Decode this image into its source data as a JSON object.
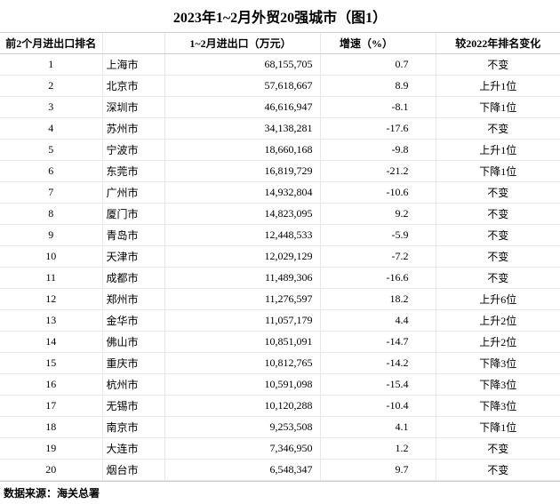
{
  "title": "2023年1~2月外贸20强城市（图1）",
  "columns": {
    "rank": "前2个月进出口排名",
    "city": "",
    "value": "1~2月进出口（万元）",
    "growth": "增速（%）",
    "change": "较2022年排名变化"
  },
  "rows": [
    {
      "rank": "1",
      "city": "上海市",
      "value": "68,155,705",
      "growth": "0.7",
      "change": "不变"
    },
    {
      "rank": "2",
      "city": "北京市",
      "value": "57,618,667",
      "growth": "8.9",
      "change": "上升1位"
    },
    {
      "rank": "3",
      "city": "深圳市",
      "value": "46,616,947",
      "growth": "-8.1",
      "change": "下降1位"
    },
    {
      "rank": "4",
      "city": "苏州市",
      "value": "34,138,281",
      "growth": "-17.6",
      "change": "不变"
    },
    {
      "rank": "5",
      "city": "宁波市",
      "value": "18,660,168",
      "growth": "-9.8",
      "change": "上升1位"
    },
    {
      "rank": "6",
      "city": "东莞市",
      "value": "16,819,729",
      "growth": "-21.2",
      "change": "下降1位"
    },
    {
      "rank": "7",
      "city": "广州市",
      "value": "14,932,804",
      "growth": "-10.6",
      "change": "不变"
    },
    {
      "rank": "8",
      "city": "厦门市",
      "value": "14,823,095",
      "growth": "9.2",
      "change": "不变"
    },
    {
      "rank": "9",
      "city": "青岛市",
      "value": "12,448,533",
      "growth": "-5.9",
      "change": "不变"
    },
    {
      "rank": "10",
      "city": "天津市",
      "value": "12,029,129",
      "growth": "-7.2",
      "change": "不变"
    },
    {
      "rank": "11",
      "city": "成都市",
      "value": "11,489,306",
      "growth": "-16.6",
      "change": "不变"
    },
    {
      "rank": "12",
      "city": "郑州市",
      "value": "11,276,597",
      "growth": "18.2",
      "change": "上升6位"
    },
    {
      "rank": "13",
      "city": "金华市",
      "value": "11,057,179",
      "growth": "4.4",
      "change": "上升2位"
    },
    {
      "rank": "14",
      "city": "佛山市",
      "value": "10,851,091",
      "growth": "-14.7",
      "change": "上升2位"
    },
    {
      "rank": "15",
      "city": "重庆市",
      "value": "10,812,765",
      "growth": "-14.2",
      "change": "下降3位"
    },
    {
      "rank": "16",
      "city": "杭州市",
      "value": "10,591,098",
      "growth": "-15.4",
      "change": "下降3位"
    },
    {
      "rank": "17",
      "city": "无锡市",
      "value": "10,120,288",
      "growth": "-10.4",
      "change": "下降3位"
    },
    {
      "rank": "18",
      "city": "南京市",
      "value": "9,253,508",
      "growth": "4.1",
      "change": "下降1位"
    },
    {
      "rank": "19",
      "city": "大连市",
      "value": "7,346,950",
      "growth": "1.2",
      "change": "不变"
    },
    {
      "rank": "20",
      "city": "烟台市",
      "value": "6,548,347",
      "growth": "9.7",
      "change": "不变"
    }
  ],
  "footer": "数据来源：海关总署"
}
